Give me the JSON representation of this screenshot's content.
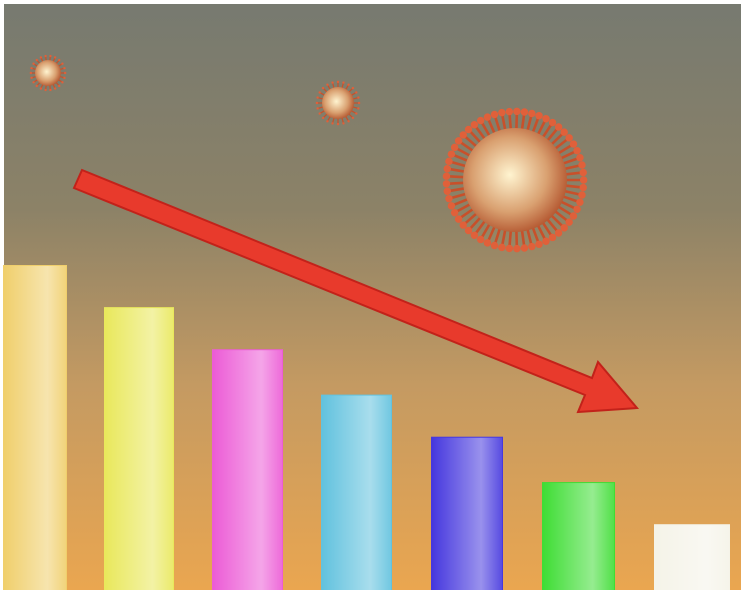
{
  "chart_data": {
    "type": "bar",
    "categories": [
      null,
      null,
      null,
      null,
      null,
      null,
      null
    ],
    "values": [
      100,
      87,
      74,
      60,
      47,
      33,
      20
    ],
    "colors": [
      "#f0cf6c",
      "#e9e85c",
      "#ec5cd6",
      "#62c2de",
      "#4638de",
      "#3fdd35",
      "#f5f3e8"
    ]
  }
}
